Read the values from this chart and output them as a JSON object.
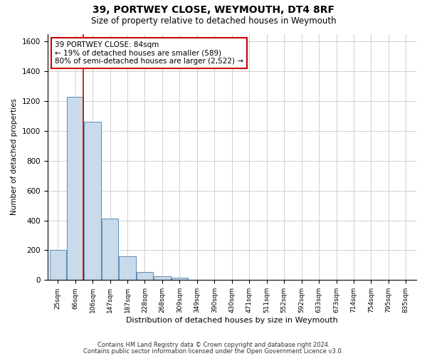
{
  "title1": "39, PORTWEY CLOSE, WEYMOUTH, DT4 8RF",
  "title2": "Size of property relative to detached houses in Weymouth",
  "xlabel": "Distribution of detached houses by size in Weymouth",
  "ylabel": "Number of detached properties",
  "categories": [
    "25sqm",
    "66sqm",
    "106sqm",
    "147sqm",
    "187sqm",
    "228sqm",
    "268sqm",
    "309sqm",
    "349sqm",
    "390sqm",
    "430sqm",
    "471sqm",
    "511sqm",
    "552sqm",
    "592sqm",
    "633sqm",
    "673sqm",
    "714sqm",
    "754sqm",
    "795sqm",
    "835sqm"
  ],
  "values": [
    200,
    1230,
    1060,
    410,
    160,
    55,
    25,
    15,
    0,
    0,
    0,
    0,
    0,
    0,
    0,
    0,
    0,
    0,
    0,
    0,
    0
  ],
  "bar_color": "#c9daea",
  "bar_edge_color": "#5b8db8",
  "annotation_text": "39 PORTWEY CLOSE: 84sqm\n← 19% of detached houses are smaller (589)\n80% of semi-detached houses are larger (2,522) →",
  "annotation_box_color": "#ffffff",
  "annotation_edge_color": "#cc0000",
  "red_line_color": "#cc0000",
  "grid_color": "#c8c8c8",
  "ylim": [
    0,
    1650
  ],
  "yticks": [
    0,
    200,
    400,
    600,
    800,
    1000,
    1200,
    1400,
    1600
  ],
  "footer1": "Contains HM Land Registry data © Crown copyright and database right 2024.",
  "footer2": "Contains public sector information licensed under the Open Government Licence v3.0."
}
